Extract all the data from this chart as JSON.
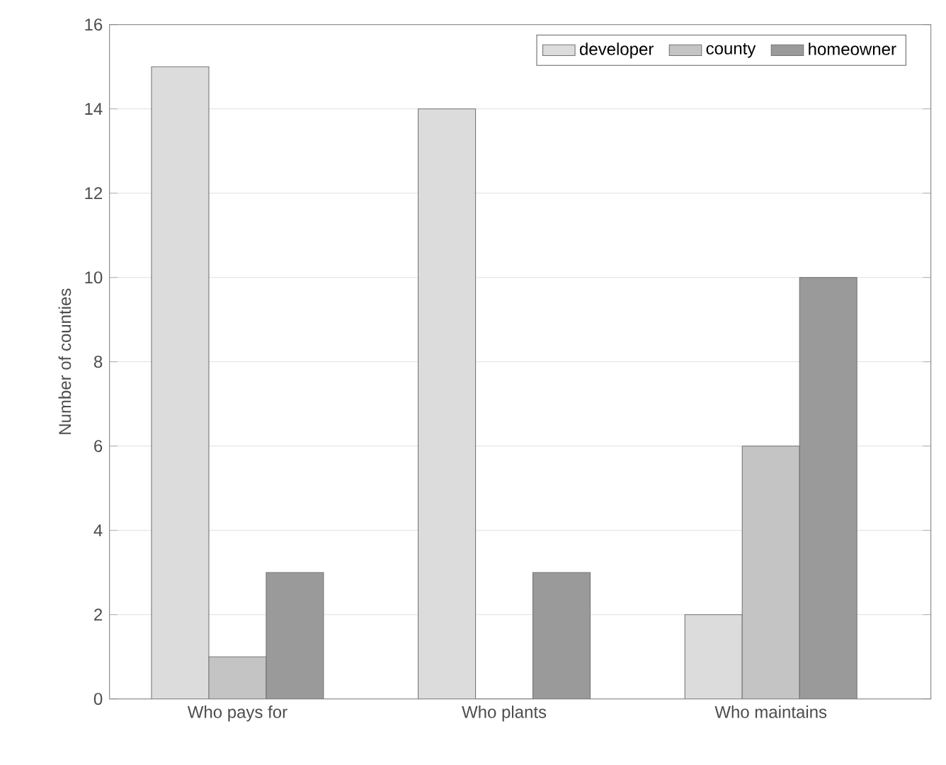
{
  "chart_data": {
    "type": "bar",
    "ylabel": "Number of counties",
    "categories": [
      "Who pays for",
      "Who plants",
      "Who maintains"
    ],
    "series": [
      {
        "name": "developer",
        "color": "#dcdcdc",
        "values": [
          15,
          14,
          2
        ]
      },
      {
        "name": "county",
        "color": "#c4c4c4",
        "values": [
          1,
          0,
          6
        ]
      },
      {
        "name": "homeowner",
        "color": "#9a9a9a",
        "values": [
          3,
          3,
          10
        ]
      }
    ],
    "ylim": [
      0,
      16
    ],
    "yticks": [
      0,
      2,
      4,
      6,
      8,
      10,
      12,
      14,
      16
    ],
    "grid": "y",
    "legend": "top right"
  }
}
